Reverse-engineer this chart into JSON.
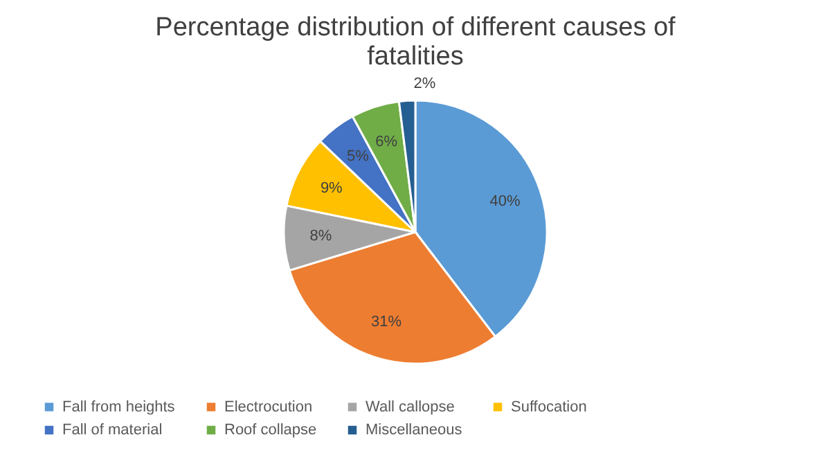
{
  "chart_data": {
    "type": "pie",
    "title": [
      "Percentage distribution of different causes of",
      "fatalities"
    ],
    "categories": [
      "Fall from heights",
      "Electrocution",
      "Wall callopse",
      "Suffocation",
      "Fall of material",
      "Roof collapse",
      "Miscellaneous"
    ],
    "values": [
      40,
      31,
      8,
      9,
      5,
      6,
      2
    ],
    "value_labels": [
      "40%",
      "31%",
      "8%",
      "9%",
      "5%",
      "6%",
      "2%"
    ],
    "colors": [
      "#5b9bd5",
      "#ed7d31",
      "#a5a5a5",
      "#ffc000",
      "#4472c4",
      "#70ad47",
      "#255e91"
    ],
    "legend": "bottom"
  }
}
